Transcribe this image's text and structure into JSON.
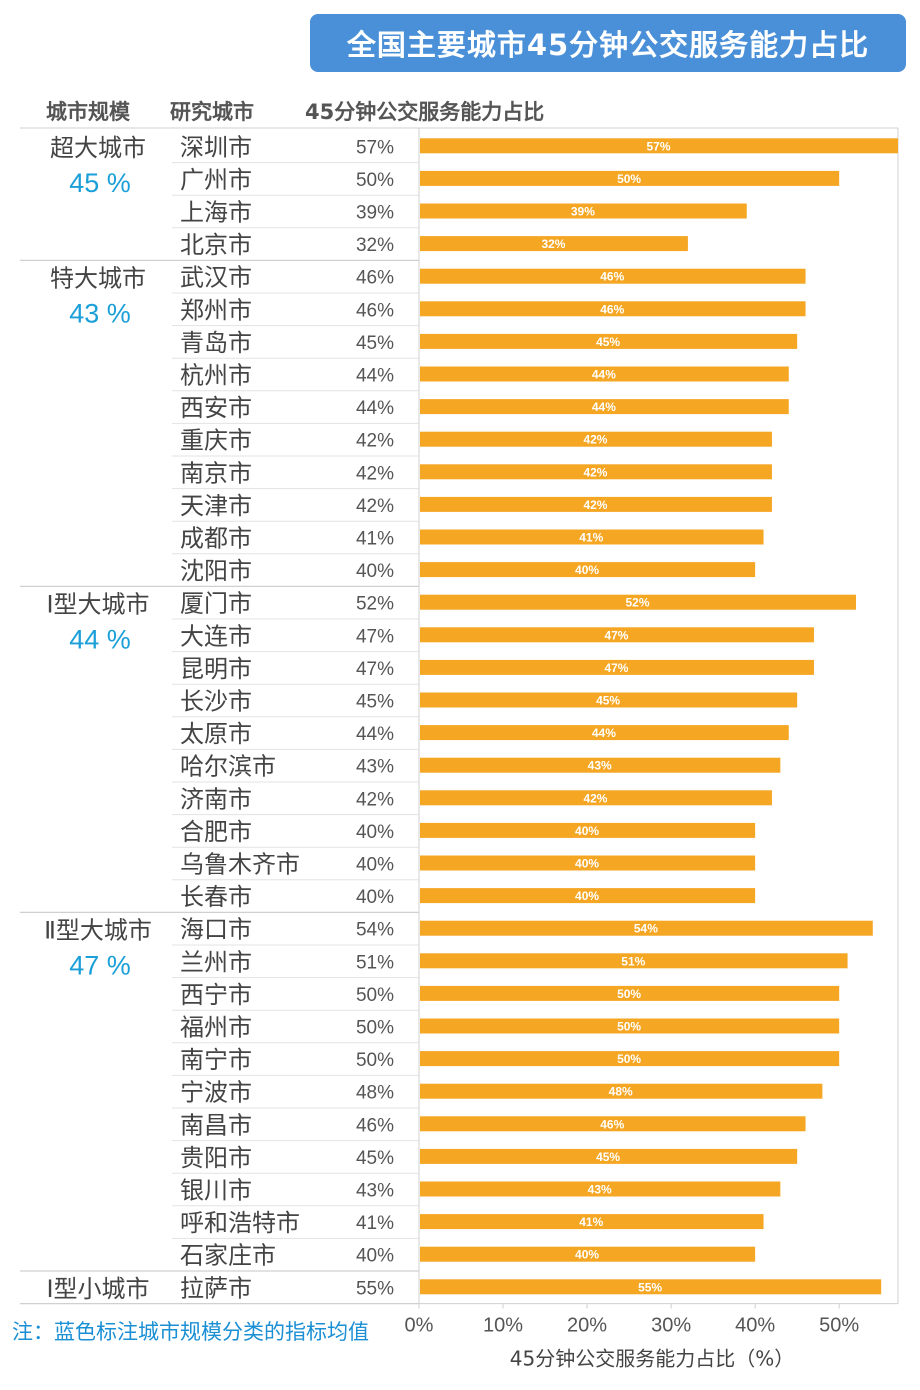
{
  "title": "全国主要城市45分钟公交服务能力占比",
  "headers": {
    "scale": "城市规模",
    "city": "研究城市",
    "ratio": "45分钟公交服务能力占比"
  },
  "note": "注：蓝色标注城市规模分类的指标均值",
  "colors": {
    "bar": "#f5a623",
    "accent": "#1a9fd8",
    "title_bg": "#4a90d9",
    "grid": "#d0d0d0"
  },
  "chart_data": {
    "type": "bar",
    "orientation": "horizontal",
    "xlabel": "45分钟公交服务能力占比（%）",
    "xlim": [
      0,
      57
    ],
    "xticks": [
      "0%",
      "10%",
      "20%",
      "30%",
      "40%",
      "50%"
    ],
    "groups": [
      {
        "name": "超大城市",
        "mean": "45 %",
        "cities": [
          {
            "city": "深圳市",
            "value": 57
          },
          {
            "city": "广州市",
            "value": 50
          },
          {
            "city": "上海市",
            "value": 39
          },
          {
            "city": "北京市",
            "value": 32
          }
        ]
      },
      {
        "name": "特大城市",
        "mean": "43 %",
        "cities": [
          {
            "city": "武汉市",
            "value": 46
          },
          {
            "city": "郑州市",
            "value": 46
          },
          {
            "city": "青岛市",
            "value": 45
          },
          {
            "city": "杭州市",
            "value": 44
          },
          {
            "city": "西安市",
            "value": 44
          },
          {
            "city": "重庆市",
            "value": 42
          },
          {
            "city": "南京市",
            "value": 42
          },
          {
            "city": "天津市",
            "value": 42
          },
          {
            "city": "成都市",
            "value": 41
          },
          {
            "city": "沈阳市",
            "value": 40
          }
        ]
      },
      {
        "name": "Ⅰ型大城市",
        "mean": "44 %",
        "cities": [
          {
            "city": "厦门市",
            "value": 52
          },
          {
            "city": "大连市",
            "value": 47
          },
          {
            "city": "昆明市",
            "value": 47
          },
          {
            "city": "长沙市",
            "value": 45
          },
          {
            "city": "太原市",
            "value": 44
          },
          {
            "city": "哈尔滨市",
            "value": 43
          },
          {
            "city": "济南市",
            "value": 42
          },
          {
            "city": "合肥市",
            "value": 40
          },
          {
            "city": "乌鲁木齐市",
            "value": 40
          },
          {
            "city": "长春市",
            "value": 40
          }
        ]
      },
      {
        "name": "Ⅱ型大城市",
        "mean": "47 %",
        "cities": [
          {
            "city": "海口市",
            "value": 54
          },
          {
            "city": "兰州市",
            "value": 51
          },
          {
            "city": "西宁市",
            "value": 50
          },
          {
            "city": "福州市",
            "value": 50
          },
          {
            "city": "南宁市",
            "value": 50
          },
          {
            "city": "宁波市",
            "value": 48
          },
          {
            "city": "南昌市",
            "value": 46
          },
          {
            "city": "贵阳市",
            "value": 45
          },
          {
            "city": "银川市",
            "value": 43
          },
          {
            "city": "呼和浩特市",
            "value": 41
          },
          {
            "city": "石家庄市",
            "value": 40
          }
        ]
      },
      {
        "name": "Ⅰ型小城市",
        "mean": "",
        "cities": [
          {
            "city": "拉萨市",
            "value": 55
          }
        ]
      }
    ]
  }
}
